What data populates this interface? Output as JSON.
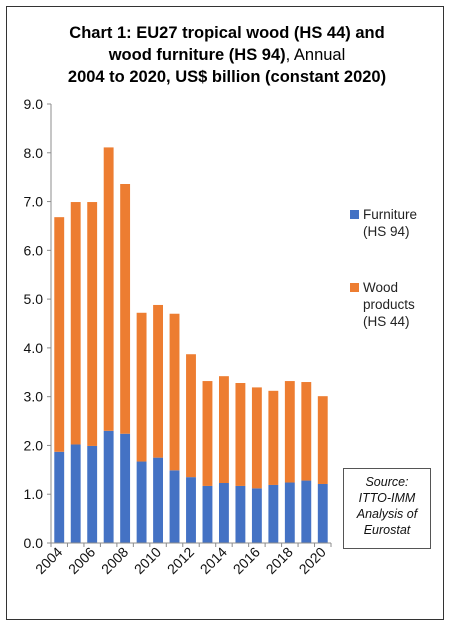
{
  "chart_data": {
    "type": "bar",
    "stacked": true,
    "title_lines": [
      "Chart 1: EU27 tropical wood (HS 44) and",
      "wood furniture (HS 94), Annual",
      "2004 to 2020, US$ billion (constant 2020)"
    ],
    "categories": [
      "2004",
      "2005",
      "2006",
      "2007",
      "2008",
      "2009",
      "2010",
      "2011",
      "2012",
      "2013",
      "2014",
      "2015",
      "2016",
      "2017",
      "2018",
      "2019",
      "2020"
    ],
    "x_tick_labels": [
      "2004",
      "2006",
      "2008",
      "2010",
      "2012",
      "2014",
      "2016",
      "2018",
      "2020"
    ],
    "y_tick_labels": [
      "0.0",
      "1.0",
      "2.0",
      "3.0",
      "4.0",
      "5.0",
      "6.0",
      "7.0",
      "8.0",
      "9.0"
    ],
    "ylim": [
      0,
      9
    ],
    "series": [
      {
        "name": "Furniture (HS 94)",
        "color": "#4472C4",
        "values": [
          1.87,
          2.02,
          1.99,
          2.3,
          2.24,
          1.67,
          1.75,
          1.49,
          1.35,
          1.17,
          1.23,
          1.17,
          1.12,
          1.19,
          1.24,
          1.28,
          1.21
        ]
      },
      {
        "name": "Wood products (HS 44)",
        "color": "#ED7D31",
        "values": [
          4.81,
          4.97,
          5.0,
          5.81,
          5.12,
          3.05,
          3.13,
          3.21,
          2.52,
          2.15,
          2.19,
          2.11,
          2.07,
          1.93,
          2.08,
          2.02,
          1.8
        ]
      }
    ],
    "legend": [
      {
        "lines": [
          "Furniture",
          "(HS 94)"
        ],
        "color": "#4472C4"
      },
      {
        "lines": [
          "Wood",
          "products",
          "(HS 44)"
        ],
        "color": "#ED7D31"
      }
    ],
    "legend_position": "right",
    "grid": false,
    "source_lines": [
      "Source:",
      "ITTO-IMM",
      "Analysis of",
      "Eurostat"
    ]
  }
}
